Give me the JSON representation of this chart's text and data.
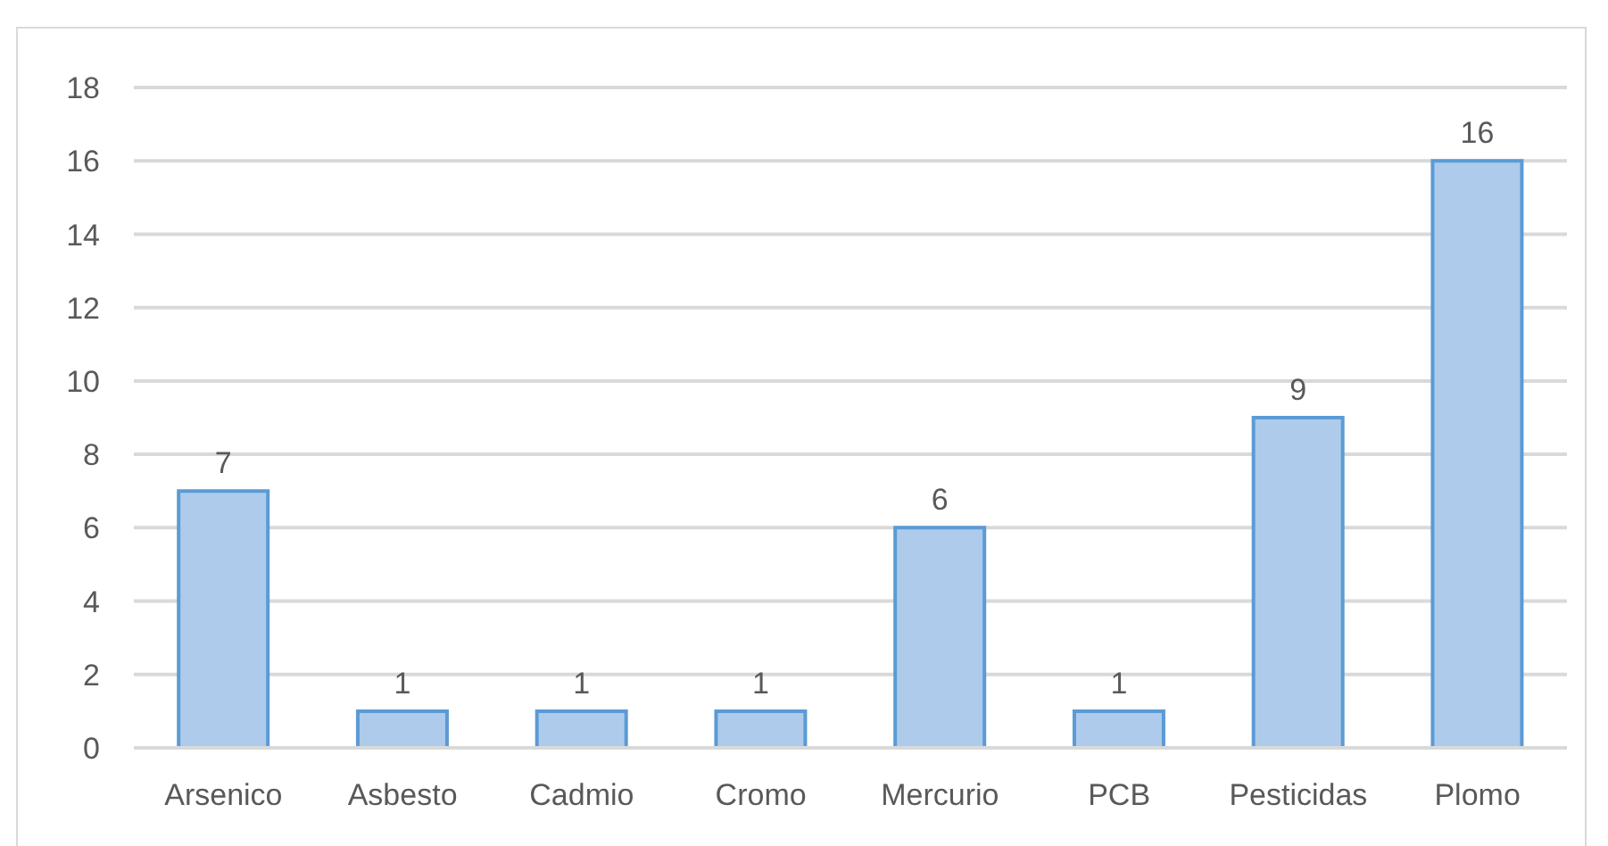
{
  "chart_data": {
    "type": "bar",
    "categories": [
      "Arsenico",
      "Asbesto",
      "Cadmio",
      "Cromo",
      "Mercurio",
      "PCB",
      "Pesticidas",
      "Plomo"
    ],
    "values": [
      7,
      1,
      1,
      1,
      6,
      1,
      9,
      16
    ],
    "color": "#aecbeb",
    "ylim": [
      0,
      18
    ],
    "yticks": [
      0,
      2,
      4,
      6,
      8,
      10,
      12,
      14,
      16,
      18
    ],
    "grid": "y",
    "data_labels": true
  }
}
